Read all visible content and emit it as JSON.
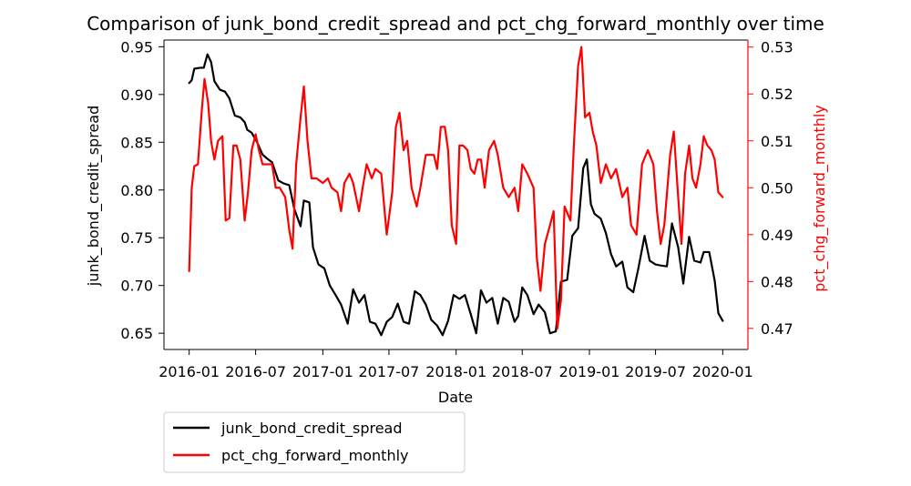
{
  "chart_data": {
    "type": "line",
    "title": "Comparison of junk_bond_credit_spread and pct_chg_forward_monthly over time",
    "xlabel": "Date",
    "ylabel_left": "junk_bond_credit_spread",
    "ylabel_right": "pct_chg_forward_monthly",
    "x_ticks": [
      "2016-01",
      "2016-07",
      "2017-01",
      "2017-07",
      "2018-01",
      "2018-07",
      "2019-01",
      "2019-07",
      "2020-01"
    ],
    "x_range": [
      "2015-10-24",
      "2020-03-10"
    ],
    "y_left_ticks": [
      "0.65",
      "0.70",
      "0.75",
      "0.80",
      "0.85",
      "0.90",
      "0.95"
    ],
    "y_left_range": [
      0.633,
      0.957
    ],
    "y_right_ticks": [
      "0.47",
      "0.48",
      "0.49",
      "0.50",
      "0.51",
      "0.52",
      "0.53"
    ],
    "y_right_range": [
      0.4655,
      0.5315
    ],
    "legend": {
      "position": "below-left",
      "entries": [
        "junk_bond_credit_spread",
        "pct_chg_forward_monthly"
      ]
    },
    "colors": {
      "left_series": "#000000",
      "right_series": "#ff0000"
    },
    "series": [
      {
        "name": "junk_bond_credit_spread",
        "axis": "left",
        "color": "#000000",
        "points": [
          [
            "2016-01-01",
            0.912
          ],
          [
            "2016-01-08",
            0.915
          ],
          [
            "2016-01-15",
            0.927
          ],
          [
            "2016-02-01",
            0.928
          ],
          [
            "2016-02-10",
            0.928
          ],
          [
            "2016-02-20",
            0.942
          ],
          [
            "2016-03-01",
            0.934
          ],
          [
            "2016-03-10",
            0.914
          ],
          [
            "2016-03-25",
            0.905
          ],
          [
            "2016-04-08",
            0.903
          ],
          [
            "2016-04-20",
            0.896
          ],
          [
            "2016-05-05",
            0.878
          ],
          [
            "2016-05-20",
            0.876
          ],
          [
            "2016-06-01",
            0.871
          ],
          [
            "2016-06-08",
            0.863
          ],
          [
            "2016-06-20",
            0.86
          ],
          [
            "2016-07-05",
            0.85
          ],
          [
            "2016-07-20",
            0.837
          ],
          [
            "2016-08-01",
            0.833
          ],
          [
            "2016-08-15",
            0.829
          ],
          [
            "2016-09-01",
            0.81
          ],
          [
            "2016-09-15",
            0.807
          ],
          [
            "2016-10-01",
            0.805
          ],
          [
            "2016-10-15",
            0.78
          ],
          [
            "2016-11-01",
            0.762
          ],
          [
            "2016-11-10",
            0.789
          ],
          [
            "2016-11-25",
            0.787
          ],
          [
            "2016-12-05",
            0.74
          ],
          [
            "2016-12-20",
            0.722
          ],
          [
            "2017-01-05",
            0.718
          ],
          [
            "2017-01-20",
            0.7
          ],
          [
            "2017-02-05",
            0.69
          ],
          [
            "2017-02-20",
            0.68
          ],
          [
            "2017-03-10",
            0.66
          ],
          [
            "2017-03-25",
            0.696
          ],
          [
            "2017-04-10",
            0.682
          ],
          [
            "2017-04-25",
            0.69
          ],
          [
            "2017-05-10",
            0.662
          ],
          [
            "2017-05-25",
            0.66
          ],
          [
            "2017-06-10",
            0.648
          ],
          [
            "2017-06-25",
            0.662
          ],
          [
            "2017-07-10",
            0.667
          ],
          [
            "2017-07-25",
            0.681
          ],
          [
            "2017-08-10",
            0.662
          ],
          [
            "2017-08-25",
            0.66
          ],
          [
            "2017-09-10",
            0.694
          ],
          [
            "2017-09-25",
            0.69
          ],
          [
            "2017-10-10",
            0.68
          ],
          [
            "2017-10-25",
            0.664
          ],
          [
            "2017-11-10",
            0.658
          ],
          [
            "2017-11-25",
            0.648
          ],
          [
            "2017-12-10",
            0.663
          ],
          [
            "2017-12-25",
            0.69
          ],
          [
            "2018-01-10",
            0.686
          ],
          [
            "2018-01-25",
            0.69
          ],
          [
            "2018-02-10",
            0.67
          ],
          [
            "2018-02-25",
            0.65
          ],
          [
            "2018-03-10",
            0.695
          ],
          [
            "2018-03-25",
            0.682
          ],
          [
            "2018-04-10",
            0.687
          ],
          [
            "2018-04-25",
            0.66
          ],
          [
            "2018-05-10",
            0.687
          ],
          [
            "2018-05-25",
            0.683
          ],
          [
            "2018-06-10",
            0.662
          ],
          [
            "2018-06-20",
            0.668
          ],
          [
            "2018-07-01",
            0.698
          ],
          [
            "2018-07-15",
            0.69
          ],
          [
            "2018-08-01",
            0.67
          ],
          [
            "2018-08-15",
            0.68
          ],
          [
            "2018-09-01",
            0.672
          ],
          [
            "2018-09-15",
            0.65
          ],
          [
            "2018-10-01",
            0.652
          ],
          [
            "2018-10-15",
            0.704
          ],
          [
            "2018-11-01",
            0.706
          ],
          [
            "2018-11-15",
            0.752
          ],
          [
            "2018-12-01",
            0.76
          ],
          [
            "2018-12-15",
            0.823
          ],
          [
            "2018-12-25",
            0.832
          ],
          [
            "2019-01-05",
            0.785
          ],
          [
            "2019-01-15",
            0.775
          ],
          [
            "2019-02-01",
            0.77
          ],
          [
            "2019-02-15",
            0.755
          ],
          [
            "2019-03-01",
            0.733
          ],
          [
            "2019-03-15",
            0.72
          ],
          [
            "2019-04-01",
            0.725
          ],
          [
            "2019-04-15",
            0.698
          ],
          [
            "2019-05-01",
            0.693
          ],
          [
            "2019-05-15",
            0.718
          ],
          [
            "2019-06-01",
            0.752
          ],
          [
            "2019-06-15",
            0.726
          ],
          [
            "2019-07-01",
            0.722
          ],
          [
            "2019-07-15",
            0.721
          ],
          [
            "2019-08-01",
            0.72
          ],
          [
            "2019-08-15",
            0.765
          ],
          [
            "2019-09-01",
            0.74
          ],
          [
            "2019-09-15",
            0.702
          ],
          [
            "2019-10-01",
            0.751
          ],
          [
            "2019-10-15",
            0.726
          ],
          [
            "2019-11-01",
            0.724
          ],
          [
            "2019-11-10",
            0.735
          ],
          [
            "2019-11-25",
            0.735
          ],
          [
            "2019-12-10",
            0.705
          ],
          [
            "2019-12-20",
            0.671
          ],
          [
            "2020-01-01",
            0.663
          ]
        ]
      },
      {
        "name": "pct_chg_forward_monthly",
        "axis": "right",
        "color": "#ff0000",
        "points": [
          [
            "2016-01-01",
            0.4822
          ],
          [
            "2016-01-08",
            0.5
          ],
          [
            "2016-01-15",
            0.5046
          ],
          [
            "2016-01-25",
            0.505
          ],
          [
            "2016-02-05",
            0.517
          ],
          [
            "2016-02-12",
            0.5232
          ],
          [
            "2016-02-22",
            0.518
          ],
          [
            "2016-03-01",
            0.51
          ],
          [
            "2016-03-10",
            0.506
          ],
          [
            "2016-03-20",
            0.51
          ],
          [
            "2016-04-01",
            0.511
          ],
          [
            "2016-04-10",
            0.493
          ],
          [
            "2016-04-20",
            0.4935
          ],
          [
            "2016-05-01",
            0.509
          ],
          [
            "2016-05-10",
            0.509
          ],
          [
            "2016-05-20",
            0.506
          ],
          [
            "2016-06-01",
            0.493
          ],
          [
            "2016-06-10",
            0.499
          ],
          [
            "2016-06-20",
            0.508
          ],
          [
            "2016-07-01",
            0.5114
          ],
          [
            "2016-07-10",
            0.508
          ],
          [
            "2016-07-20",
            0.505
          ],
          [
            "2016-08-01",
            0.505
          ],
          [
            "2016-08-15",
            0.505
          ],
          [
            "2016-08-25",
            0.5
          ],
          [
            "2016-09-05",
            0.5
          ],
          [
            "2016-09-20",
            0.498
          ],
          [
            "2016-10-01",
            0.491
          ],
          [
            "2016-10-10",
            0.487
          ],
          [
            "2016-10-20",
            0.505
          ],
          [
            "2016-11-01",
            0.515
          ],
          [
            "2016-11-10",
            0.5216
          ],
          [
            "2016-11-20",
            0.51
          ],
          [
            "2016-12-01",
            0.502
          ],
          [
            "2016-12-15",
            0.502
          ],
          [
            "2017-01-01",
            0.501
          ],
          [
            "2017-01-15",
            0.502
          ],
          [
            "2017-01-25",
            0.5
          ],
          [
            "2017-02-10",
            0.499
          ],
          [
            "2017-02-20",
            0.495
          ],
          [
            "2017-03-01",
            0.501
          ],
          [
            "2017-03-15",
            0.503
          ],
          [
            "2017-03-25",
            0.501
          ],
          [
            "2017-04-10",
            0.495
          ],
          [
            "2017-04-20",
            0.5
          ],
          [
            "2017-05-01",
            0.505
          ],
          [
            "2017-05-15",
            0.502
          ],
          [
            "2017-05-25",
            0.504
          ],
          [
            "2017-06-10",
            0.503
          ],
          [
            "2017-06-25",
            0.49
          ],
          [
            "2017-07-10",
            0.499
          ],
          [
            "2017-07-20",
            0.513
          ],
          [
            "2017-07-30",
            0.516
          ],
          [
            "2017-08-10",
            0.508
          ],
          [
            "2017-08-20",
            0.51
          ],
          [
            "2017-09-01",
            0.5
          ],
          [
            "2017-09-15",
            0.496
          ],
          [
            "2017-09-25",
            0.5
          ],
          [
            "2017-10-10",
            0.507
          ],
          [
            "2017-10-20",
            0.507
          ],
          [
            "2017-11-01",
            0.507
          ],
          [
            "2017-11-10",
            0.504
          ],
          [
            "2017-11-20",
            0.513
          ],
          [
            "2017-12-01",
            0.513
          ],
          [
            "2017-12-10",
            0.508
          ],
          [
            "2017-12-20",
            0.492
          ],
          [
            "2018-01-01",
            0.488
          ],
          [
            "2018-01-10",
            0.509
          ],
          [
            "2018-01-20",
            0.509
          ],
          [
            "2018-02-01",
            0.508
          ],
          [
            "2018-02-10",
            0.504
          ],
          [
            "2018-02-20",
            0.503
          ],
          [
            "2018-03-01",
            0.506
          ],
          [
            "2018-03-10",
            0.506
          ],
          [
            "2018-03-20",
            0.5
          ],
          [
            "2018-04-01",
            0.508
          ],
          [
            "2018-04-15",
            0.51
          ],
          [
            "2018-04-25",
            0.507
          ],
          [
            "2018-05-10",
            0.5
          ],
          [
            "2018-05-25",
            0.498
          ],
          [
            "2018-06-10",
            0.5
          ],
          [
            "2018-06-20",
            0.495
          ],
          [
            "2018-07-01",
            0.505
          ],
          [
            "2018-07-15",
            0.503
          ],
          [
            "2018-08-01",
            0.5
          ],
          [
            "2018-08-10",
            0.485
          ],
          [
            "2018-08-20",
            0.478
          ],
          [
            "2018-09-01",
            0.488
          ],
          [
            "2018-09-15",
            0.492
          ],
          [
            "2018-09-25",
            0.495
          ],
          [
            "2018-10-05",
            0.47
          ],
          [
            "2018-10-15",
            0.476
          ],
          [
            "2018-10-25",
            0.496
          ],
          [
            "2018-11-10",
            0.493
          ],
          [
            "2018-11-20",
            0.51
          ],
          [
            "2018-12-01",
            0.526
          ],
          [
            "2018-12-10",
            0.53
          ],
          [
            "2018-12-20",
            0.515
          ],
          [
            "2019-01-01",
            0.516
          ],
          [
            "2019-01-10",
            0.512
          ],
          [
            "2019-01-20",
            0.509
          ],
          [
            "2019-02-01",
            0.501
          ],
          [
            "2019-02-15",
            0.505
          ],
          [
            "2019-03-01",
            0.502
          ],
          [
            "2019-03-15",
            0.504
          ],
          [
            "2019-04-01",
            0.498
          ],
          [
            "2019-04-15",
            0.5
          ],
          [
            "2019-04-25",
            0.492
          ],
          [
            "2019-05-10",
            0.49
          ],
          [
            "2019-05-25",
            0.505
          ],
          [
            "2019-06-10",
            0.508
          ],
          [
            "2019-06-25",
            0.505
          ],
          [
            "2019-07-05",
            0.495
          ],
          [
            "2019-07-15",
            0.488
          ],
          [
            "2019-07-25",
            0.492
          ],
          [
            "2019-08-10",
            0.507
          ],
          [
            "2019-08-20",
            0.512
          ],
          [
            "2019-09-01",
            0.498
          ],
          [
            "2019-09-10",
            0.488
          ],
          [
            "2019-09-20",
            0.503
          ],
          [
            "2019-10-01",
            0.509
          ],
          [
            "2019-10-10",
            0.502
          ],
          [
            "2019-10-20",
            0.5
          ],
          [
            "2019-11-01",
            0.505
          ],
          [
            "2019-11-10",
            0.511
          ],
          [
            "2019-11-20",
            0.509
          ],
          [
            "2019-12-01",
            0.508
          ],
          [
            "2019-12-10",
            0.506
          ],
          [
            "2019-12-20",
            0.499
          ],
          [
            "2020-01-01",
            0.498
          ]
        ]
      }
    ]
  }
}
